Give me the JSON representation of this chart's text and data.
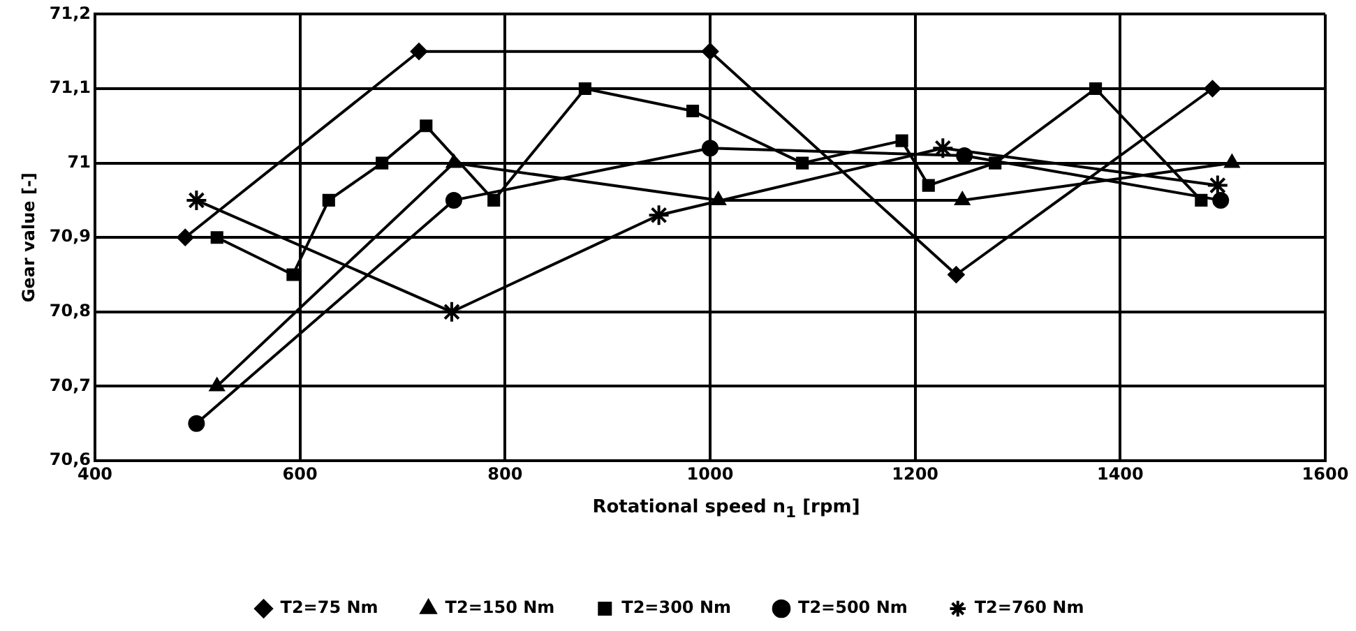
{
  "chart_data": {
    "type": "line",
    "xlabel": "Rotational speed n$_{1}$ [rpm]",
    "ylabel": "Gear value [-]",
    "xlim": [
      400,
      1600
    ],
    "xticks": [
      400,
      600,
      800,
      1000,
      1200,
      1400,
      1600
    ],
    "ylim": [
      70.6,
      71.2
    ],
    "yticks": [
      {
        "value": 70.6,
        "label": "70,6"
      },
      {
        "value": 70.7,
        "label": "70,7"
      },
      {
        "value": 70.8,
        "label": "70,8"
      },
      {
        "value": 70.9,
        "label": "70,9"
      },
      {
        "value": 71,
        "label": "71"
      },
      {
        "value": 71.1,
        "label": "71,1"
      },
      {
        "value": 71.2,
        "label": "71,2"
      }
    ],
    "grid": true,
    "legend": "bottom",
    "line_style": "solid",
    "series": [
      {
        "name": "T2=75 Nm",
        "color": "#000000",
        "marker": "diamond",
        "x": [
          488,
          716,
          1000,
          1240,
          1490
        ],
        "values": [
          70.9,
          71.15,
          71.15,
          70.85,
          71.1
        ]
      },
      {
        "name": "T2=150 Nm",
        "color": "#000000",
        "marker": "triangle",
        "x": [
          519,
          750,
          1008,
          1246,
          1509
        ],
        "values": [
          70.7,
          71.0,
          70.95,
          70.95,
          71.0
        ]
      },
      {
        "name": "T2=300 Nm",
        "color": "#000000",
        "marker": "square",
        "x": [
          519,
          593,
          628,
          680,
          723,
          789,
          878,
          983,
          1090,
          1187,
          1213,
          1278,
          1376,
          1479
        ],
        "values": [
          70.9,
          70.85,
          70.95,
          71.0,
          71.05,
          70.95,
          71.1,
          71.07,
          71.0,
          71.03,
          70.97,
          71.0,
          71.1,
          70.95
        ]
      },
      {
        "name": "T2=500 Nm",
        "color": "#000000",
        "marker": "circle",
        "x": [
          499,
          750,
          1000,
          1248,
          1498
        ],
        "values": [
          70.65,
          70.95,
          71.02,
          71.01,
          70.95
        ]
      },
      {
        "name": "T2=760 Nm",
        "color": "#000000",
        "marker": "cross",
        "x": [
          499,
          748,
          950,
          1227,
          1495
        ],
        "values": [
          70.95,
          70.8,
          70.93,
          71.02,
          70.97
        ]
      }
    ]
  }
}
